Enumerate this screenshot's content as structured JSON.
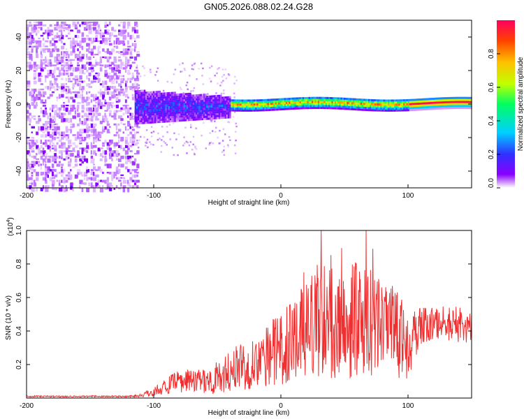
{
  "title": "GN05.2026.088.02.24.G28",
  "colors": {
    "snr_line": "#f03030",
    "axis": "#000000"
  },
  "chart_data": [
    {
      "type": "heatmap",
      "name": "spectrogram",
      "xlabel": "Height of straight line (km)",
      "ylabel": "Frequency (Hz)",
      "xlim": [
        -200,
        150
      ],
      "ylim": [
        -50,
        50
      ],
      "xticks": [
        -200,
        -100,
        0,
        100
      ],
      "yticks": [
        -40,
        -20,
        0,
        20,
        40
      ],
      "colorbar": {
        "label": "Normalized spectral amplitude",
        "range": [
          0,
          1
        ],
        "ticks": [
          "0.0",
          "0.2",
          "0.4",
          "0.6",
          "0.8"
        ],
        "colormap": [
          "#ffffff",
          "#8a00ff",
          "#3030ff",
          "#00d0ff",
          "#00ff60",
          "#c0ff00",
          "#ffc000",
          "#ff4000",
          "#ff0060"
        ]
      },
      "regions": [
        {
          "desc": "broadband noise",
          "x": [
            -200,
            -115
          ],
          "f": [
            -50,
            50
          ],
          "amp": 0.15
        },
        {
          "desc": "transition",
          "x": [
            -115,
            -40
          ],
          "f": [
            -12,
            10
          ],
          "amp": 0.3
        },
        {
          "desc": "signal line",
          "x": [
            -40,
            150
          ],
          "f": [
            -2,
            4
          ],
          "amp": 0.9
        }
      ]
    },
    {
      "type": "line",
      "name": "snr",
      "xlabel": "Height of straight line (km)",
      "ylabel": "SNR (10 * v/v)",
      "yscale_label": "(x10",
      "yscale_exp": "4",
      "yscale_close": ")",
      "xlim": [
        -200,
        150
      ],
      "ylim": [
        0,
        1.0
      ],
      "xticks": [
        -200,
        -100,
        0,
        100
      ],
      "yticks": [
        "0.2",
        "0.4",
        "0.6",
        "0.8",
        "1.0"
      ],
      "series": [
        {
          "name": "SNR",
          "x": [
            -200,
            -190,
            -180,
            -170,
            -160,
            -150,
            -140,
            -130,
            -120,
            -110,
            -100,
            -90,
            -80,
            -70,
            -60,
            -50,
            -40,
            -30,
            -20,
            -10,
            0,
            10,
            20,
            30,
            40,
            50,
            60,
            70,
            80,
            90,
            100,
            110,
            120,
            130,
            140,
            150
          ],
          "values": [
            0.01,
            0.01,
            0.01,
            0.01,
            0.01,
            0.01,
            0.01,
            0.01,
            0.01,
            0.015,
            0.04,
            0.07,
            0.1,
            0.1,
            0.1,
            0.12,
            0.16,
            0.2,
            0.22,
            0.27,
            0.3,
            0.33,
            0.4,
            0.47,
            0.5,
            0.5,
            0.48,
            0.45,
            0.42,
            0.38,
            0.32,
            0.42,
            0.45,
            0.45,
            0.42,
            0.42
          ],
          "spread": [
            0.005,
            0.005,
            0.005,
            0.005,
            0.005,
            0.005,
            0.005,
            0.005,
            0.005,
            0.01,
            0.03,
            0.05,
            0.07,
            0.07,
            0.07,
            0.1,
            0.12,
            0.15,
            0.18,
            0.2,
            0.22,
            0.25,
            0.3,
            0.35,
            0.4,
            0.4,
            0.35,
            0.32,
            0.3,
            0.28,
            0.25,
            0.12,
            0.1,
            0.1,
            0.1,
            0.08
          ]
        }
      ]
    }
  ]
}
